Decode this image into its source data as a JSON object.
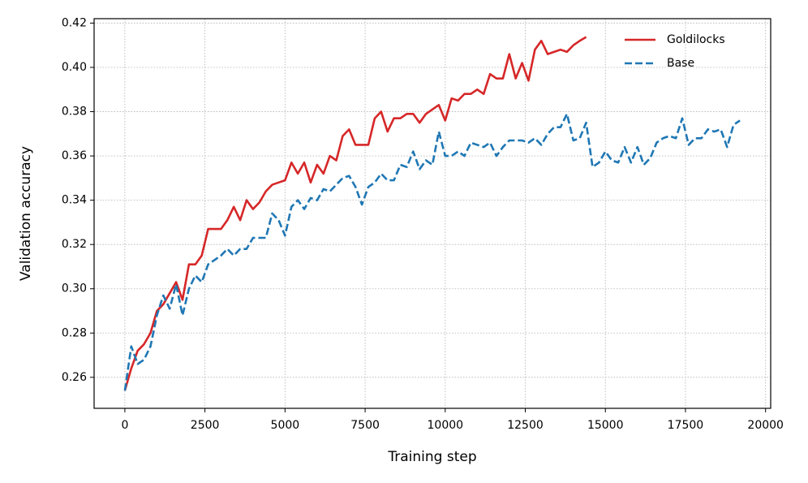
{
  "chart_data": {
    "type": "line",
    "xlabel": "Training step",
    "ylabel": "Validation accuracy",
    "xlim": [
      -960,
      20160
    ],
    "ylim": [
      0.246,
      0.422
    ],
    "xticks": [
      0,
      2500,
      5000,
      7500,
      10000,
      12500,
      15000,
      17500,
      20000
    ],
    "yticks": [
      {
        "value": 0.26,
        "label": "0.26"
      },
      {
        "value": 0.28,
        "label": "0.28"
      },
      {
        "value": 0.3,
        "label": "0.30"
      },
      {
        "value": 0.32,
        "label": "0.32"
      },
      {
        "value": 0.34,
        "label": "0.34"
      },
      {
        "value": 0.36,
        "label": "0.36"
      },
      {
        "value": 0.38,
        "label": "0.38"
      },
      {
        "value": 0.4,
        "label": "0.40"
      },
      {
        "value": 0.42,
        "label": "0.42"
      }
    ],
    "grid": true,
    "legend": "upper right",
    "series": [
      {
        "name": "Goldilocks",
        "color": "#d62728",
        "style": "solid",
        "x": [
          0,
          200,
          400,
          600,
          800,
          1000,
          1200,
          1400,
          1600,
          1800,
          2000,
          2200,
          2400,
          2600,
          2800,
          3000,
          3200,
          3400,
          3600,
          3800,
          4000,
          4200,
          4400,
          4600,
          4800,
          5000,
          5200,
          5400,
          5600,
          5800,
          6000,
          6200,
          6400,
          6600,
          6800,
          7000,
          7200,
          7400,
          7600,
          7800,
          8000,
          8200,
          8400,
          8600,
          8800,
          9000,
          9200,
          9400,
          9600,
          9800,
          10000,
          10200,
          10400,
          10600,
          10800,
          11000,
          11200,
          11400,
          11600,
          11800,
          12000,
          12200,
          12400,
          12600,
          12800,
          13000,
          13200,
          13400,
          13600,
          13800,
          14000,
          14200,
          14400
        ],
        "values": [
          0.254,
          0.264,
          0.272,
          0.275,
          0.28,
          0.29,
          0.293,
          0.298,
          0.303,
          0.295,
          0.311,
          0.311,
          0.315,
          0.327,
          0.327,
          0.327,
          0.331,
          0.337,
          0.331,
          0.34,
          0.336,
          0.339,
          0.344,
          0.347,
          0.348,
          0.349,
          0.357,
          0.352,
          0.357,
          0.348,
          0.356,
          0.352,
          0.36,
          0.358,
          0.369,
          0.372,
          0.365,
          0.365,
          0.365,
          0.377,
          0.38,
          0.371,
          0.377,
          0.377,
          0.379,
          0.379,
          0.375,
          0.379,
          0.381,
          0.383,
          0.376,
          0.386,
          0.385,
          0.388,
          0.388,
          0.39,
          0.388,
          0.397,
          0.395,
          0.395,
          0.406,
          0.395,
          0.402,
          0.394,
          0.408,
          0.412,
          0.406,
          0.407,
          0.408,
          0.407,
          0.41,
          0.412,
          0.4137
        ]
      },
      {
        "name": "Base",
        "color": "#1f77b4",
        "style": "dashed",
        "x": [
          0,
          200,
          400,
          600,
          800,
          1000,
          1200,
          1400,
          1600,
          1800,
          2000,
          2200,
          2400,
          2600,
          2800,
          3000,
          3200,
          3400,
          3600,
          3800,
          4000,
          4200,
          4400,
          4600,
          4800,
          5000,
          5200,
          5400,
          5600,
          5800,
          6000,
          6200,
          6400,
          6600,
          6800,
          7000,
          7200,
          7400,
          7600,
          7800,
          8000,
          8200,
          8400,
          8600,
          8800,
          9000,
          9200,
          9400,
          9600,
          9800,
          10000,
          10200,
          10400,
          10600,
          10800,
          11000,
          11200,
          11400,
          11600,
          11800,
          12000,
          12200,
          12400,
          12600,
          12800,
          13000,
          13200,
          13400,
          13600,
          13800,
          14000,
          14200,
          14400,
          14600,
          14800,
          15000,
          15200,
          15400,
          15600,
          15800,
          16000,
          16200,
          16400,
          16600,
          16800,
          17000,
          17200,
          17400,
          17600,
          17800,
          18000,
          18200,
          18400,
          18600,
          18800,
          19000,
          19200
        ],
        "values": [
          0.254,
          0.274,
          0.266,
          0.268,
          0.274,
          0.288,
          0.297,
          0.291,
          0.302,
          0.288,
          0.3,
          0.306,
          0.303,
          0.311,
          0.313,
          0.315,
          0.318,
          0.315,
          0.318,
          0.318,
          0.323,
          0.323,
          0.323,
          0.334,
          0.331,
          0.324,
          0.337,
          0.34,
          0.336,
          0.341,
          0.34,
          0.345,
          0.344,
          0.347,
          0.35,
          0.351,
          0.346,
          0.338,
          0.346,
          0.348,
          0.352,
          0.349,
          0.349,
          0.356,
          0.355,
          0.362,
          0.354,
          0.358,
          0.356,
          0.371,
          0.36,
          0.36,
          0.362,
          0.36,
          0.366,
          0.365,
          0.364,
          0.366,
          0.36,
          0.364,
          0.367,
          0.367,
          0.367,
          0.366,
          0.368,
          0.365,
          0.37,
          0.373,
          0.373,
          0.379,
          0.367,
          0.368,
          0.375,
          0.355,
          0.357,
          0.362,
          0.358,
          0.357,
          0.364,
          0.357,
          0.364,
          0.356,
          0.359,
          0.366,
          0.368,
          0.369,
          0.368,
          0.377,
          0.365,
          0.368,
          0.368,
          0.372,
          0.371,
          0.372,
          0.364,
          0.374,
          0.376
        ]
      }
    ]
  }
}
